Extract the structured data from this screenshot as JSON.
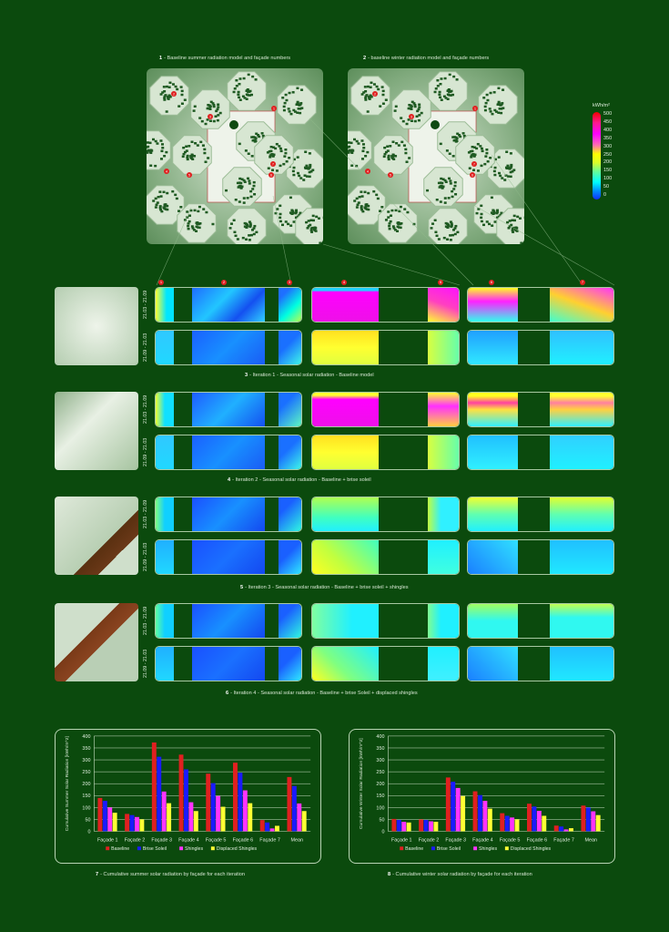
{
  "captions": {
    "c1": {
      "num": "1",
      "text": "- Baseline summer radiation model and façade numbers"
    },
    "c2": {
      "num": "2",
      "text": "- baseline winter radiation model and façade numbers"
    },
    "c3": {
      "num": "3",
      "text": "- Iteration 1 - Seasonal solar radiation - Baseline model"
    },
    "c4": {
      "num": "4",
      "text": "- Iteration 2 - Seasonal solar radiation - Baseline + brise soleil"
    },
    "c5": {
      "num": "5",
      "text": "- Iteration 3 - Seasonal solar radiation - Baseline + brise soleil + shingles"
    },
    "c6": {
      "num": "6",
      "text": "- Iteration 4 - Seasonal solar radiation - Baseline + brise Soleil + displaced shingles"
    },
    "c7": {
      "num": "7",
      "text": "- Cumulative summer solar radiation by façade for each iteration"
    },
    "c8": {
      "num": "8",
      "text": "- Cumulative winter solar radiation by façade for each iteration"
    }
  },
  "legend": {
    "unit": "kWh/m²",
    "ticks": [
      "500",
      "450",
      "400",
      "350",
      "300",
      "250",
      "200",
      "150",
      "100",
      "50",
      "0"
    ]
  },
  "dates": {
    "summer": "21.03 - 21.09",
    "winter": "21.09 - 21.03"
  },
  "facade_numbers": [
    "1",
    "2",
    "3",
    "4",
    "5",
    "6",
    "7"
  ],
  "colors": {
    "background": "#0b4a0d",
    "baseline": "#e02020",
    "brise_soleil": "#1a1aff",
    "shingles": "#ff33ff",
    "displaced_shingles": "#ffff33"
  },
  "chart_data": [
    {
      "type": "bar",
      "title": "",
      "ylabel": "Cumulative Summer Solar Radiation [kWh/m^2]",
      "ylim": [
        0,
        400
      ],
      "yticks": [
        0,
        50,
        100,
        150,
        200,
        250,
        300,
        350,
        400
      ],
      "grid": true,
      "legend": "bottom",
      "categories": [
        "Façade 1",
        "Façade 2",
        "Façade 3",
        "Façade 4",
        "Façade 5",
        "Façade 6",
        "Façade 7",
        "Mean"
      ],
      "series": [
        {
          "name": "Baseline",
          "values": [
            140,
            73,
            373,
            322,
            242,
            288,
            47,
            228
          ]
        },
        {
          "name": "Brise Soleil",
          "values": [
            128,
            68,
            313,
            260,
            202,
            246,
            37,
            190
          ]
        },
        {
          "name": "Shingles",
          "values": [
            100,
            60,
            167,
            122,
            148,
            172,
            12,
            117
          ]
        },
        {
          "name": "Displaced Shingles",
          "values": [
            78,
            50,
            118,
            85,
            103,
            118,
            23,
            85
          ]
        }
      ]
    },
    {
      "type": "bar",
      "title": "",
      "ylabel": "Cumulative Winter Solar Radiation [kWh/m^2]",
      "ylim": [
        0,
        400
      ],
      "yticks": [
        0,
        50,
        100,
        150,
        200,
        250,
        300,
        350,
        400
      ],
      "grid": true,
      "legend": "bottom",
      "categories": [
        "Façade 1",
        "Façade 2",
        "Façade 3",
        "Façade 4",
        "Façade 5",
        "Façade 6",
        "Façade 7",
        "Mean"
      ],
      "series": [
        {
          "name": "Baseline",
          "values": [
            52,
            50,
            226,
            168,
            76,
            116,
            24,
            108
          ]
        },
        {
          "name": "Brise Soleil",
          "values": [
            48,
            48,
            208,
            152,
            65,
            104,
            20,
            100
          ]
        },
        {
          "name": "Shingles",
          "values": [
            40,
            42,
            182,
            128,
            58,
            86,
            8,
            84
          ]
        },
        {
          "name": "Displaced Shingles",
          "values": [
            37,
            40,
            148,
            95,
            50,
            65,
            13,
            68
          ]
        }
      ]
    }
  ]
}
